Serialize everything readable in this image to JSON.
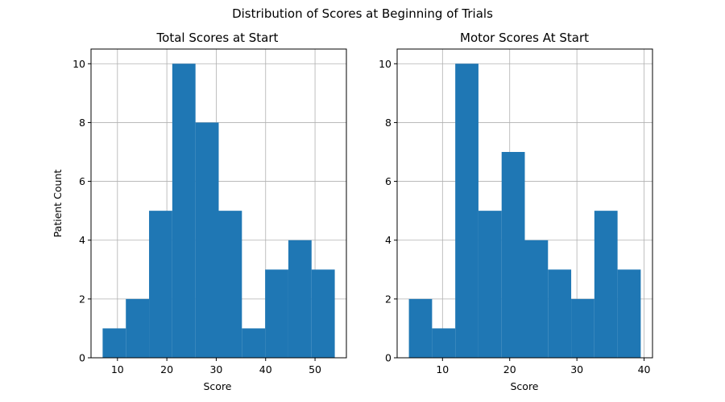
{
  "figure": {
    "suptitle": "Distribution of Scores at Beginning of Trials"
  },
  "colors": {
    "bar": "#1f77b4",
    "grid": "#b0b0b0",
    "axis": "#000000"
  },
  "chart_data": [
    {
      "type": "bar",
      "title": "Total Scores at Start",
      "xlabel": "Score",
      "ylabel": "Patient Count",
      "xlim": [
        4.65,
        56.35
      ],
      "ylim": [
        0,
        10.5
      ],
      "xticks": [
        10,
        20,
        30,
        40,
        50
      ],
      "yticks": [
        0,
        2,
        4,
        6,
        8,
        10
      ],
      "grid": true,
      "bins": [
        {
          "x0": 7.0,
          "x1": 11.7,
          "count": 1
        },
        {
          "x0": 11.7,
          "x1": 16.4,
          "count": 2
        },
        {
          "x0": 16.4,
          "x1": 21.1,
          "count": 5
        },
        {
          "x0": 21.1,
          "x1": 25.8,
          "count": 10
        },
        {
          "x0": 25.8,
          "x1": 30.5,
          "count": 8
        },
        {
          "x0": 30.5,
          "x1": 35.2,
          "count": 5
        },
        {
          "x0": 35.2,
          "x1": 39.9,
          "count": 1
        },
        {
          "x0": 39.9,
          "x1": 44.6,
          "count": 3
        },
        {
          "x0": 44.6,
          "x1": 49.3,
          "count": 4
        },
        {
          "x0": 49.3,
          "x1": 54.0,
          "count": 3
        }
      ]
    },
    {
      "type": "bar",
      "title": "Motor Scores At Start",
      "xlabel": "Score",
      "ylabel": "",
      "xlim": [
        3.25,
        41.25
      ],
      "ylim": [
        0,
        10.5
      ],
      "xticks": [
        10,
        20,
        30,
        40
      ],
      "yticks": [
        0,
        2,
        4,
        6,
        8,
        10
      ],
      "grid": true,
      "bins": [
        {
          "x0": 5.0,
          "x1": 8.45,
          "count": 2
        },
        {
          "x0": 8.45,
          "x1": 11.9,
          "count": 1
        },
        {
          "x0": 11.9,
          "x1": 15.35,
          "count": 10
        },
        {
          "x0": 15.35,
          "x1": 18.8,
          "count": 5
        },
        {
          "x0": 18.8,
          "x1": 22.25,
          "count": 7
        },
        {
          "x0": 22.25,
          "x1": 25.7,
          "count": 4
        },
        {
          "x0": 25.7,
          "x1": 29.15,
          "count": 3
        },
        {
          "x0": 29.15,
          "x1": 32.6,
          "count": 2
        },
        {
          "x0": 32.6,
          "x1": 36.05,
          "count": 5
        },
        {
          "x0": 36.05,
          "x1": 39.5,
          "count": 3
        }
      ]
    }
  ]
}
